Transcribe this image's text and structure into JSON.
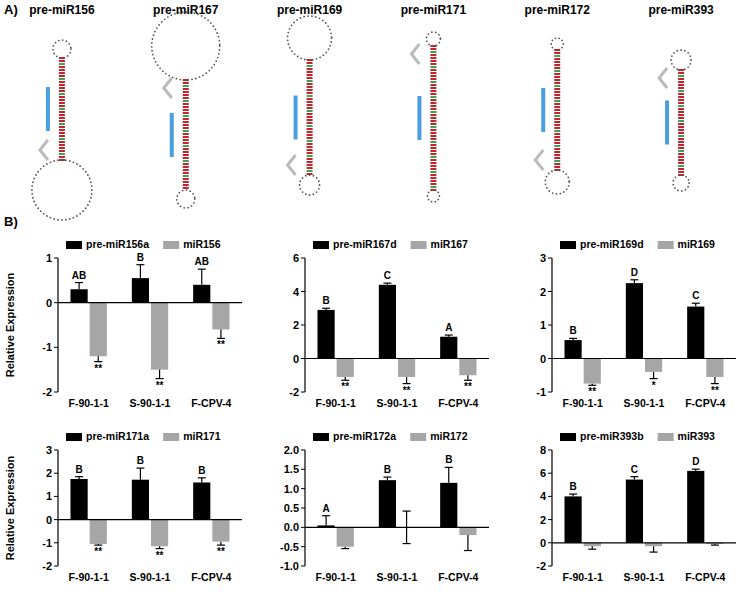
{
  "panel_labels": [
    "A)",
    "B)"
  ],
  "structures": [
    "pre-miR156",
    "pre-miR167",
    "pre-miR169",
    "pre-miR171",
    "pre-miR172",
    "pre-miR393"
  ],
  "chart_data": [
    {
      "type": "bar",
      "categories": [
        "F-90-1-1",
        "S-90-1-1",
        "F-CPV-4"
      ],
      "y_label": "Relative Expression",
      "legend": "top",
      "ylim": [
        -2,
        1
      ],
      "yticks": [
        -2,
        -1,
        0,
        1
      ],
      "series": [
        {
          "name": "pre-miR156a",
          "color": "#000000",
          "values": [
            0.3,
            0.55,
            0.4
          ],
          "errors": [
            0.15,
            0.3,
            0.35
          ],
          "labels": [
            "AB",
            "B",
            "AB"
          ]
        },
        {
          "name": "miR156",
          "color": "#a6a6a6",
          "values": [
            -1.2,
            -1.5,
            -0.6
          ],
          "errors": [
            0.12,
            0.2,
            0.2
          ],
          "labels": [
            "**",
            "**",
            "**"
          ]
        }
      ]
    },
    {
      "type": "bar",
      "categories": [
        "F-90-1-1",
        "S-90-1-1",
        "F-CPV-4"
      ],
      "legend": "top",
      "ylim": [
        -2,
        6
      ],
      "yticks": [
        -2,
        0,
        2,
        4,
        6
      ],
      "series": [
        {
          "name": "pre-miR167d",
          "color": "#000000",
          "values": [
            2.9,
            4.4,
            1.3
          ],
          "errors": [
            0.1,
            0.1,
            0.1
          ],
          "labels": [
            "B",
            "C",
            "A"
          ]
        },
        {
          "name": "miR167",
          "color": "#a6a6a6",
          "values": [
            -1.1,
            -1.1,
            -1.0
          ],
          "errors": [
            0.2,
            0.4,
            0.3
          ],
          "labels": [
            "**",
            "**",
            "**"
          ]
        }
      ]
    },
    {
      "type": "bar",
      "categories": [
        "F-90-1-1",
        "S-90-1-1",
        "F-CPV-4"
      ],
      "legend": "top",
      "ylim": [
        -1,
        3
      ],
      "yticks": [
        -1,
        0,
        1,
        2,
        3
      ],
      "series": [
        {
          "name": "pre-miR169d",
          "color": "#000000",
          "values": [
            0.55,
            2.25,
            1.55
          ],
          "errors": [
            0.05,
            0.1,
            0.1
          ],
          "labels": [
            "B",
            "D",
            "C"
          ]
        },
        {
          "name": "miR169",
          "color": "#a6a6a6",
          "values": [
            -0.75,
            -0.4,
            -0.55
          ],
          "errors": [
            0.05,
            0.2,
            0.2
          ],
          "labels": [
            "**",
            "*",
            "**"
          ]
        }
      ]
    },
    {
      "type": "bar",
      "categories": [
        "F-90-1-1",
        "S-90-1-1",
        "F-CPV-4"
      ],
      "y_label": "Relative Expression",
      "legend": "top",
      "ylim": [
        -2,
        3
      ],
      "yticks": [
        -2,
        -1,
        0,
        1,
        2,
        3
      ],
      "series": [
        {
          "name": "pre-miR171a",
          "color": "#000000",
          "values": [
            1.75,
            1.72,
            1.6
          ],
          "errors": [
            0.1,
            0.5,
            0.2
          ],
          "labels": [
            "B",
            "B",
            "B"
          ]
        },
        {
          "name": "miR171",
          "color": "#a6a6a6",
          "values": [
            -1.05,
            -1.15,
            -0.95
          ],
          "errors": [
            0.05,
            0.1,
            0.15
          ],
          "labels": [
            "**",
            "**",
            "**"
          ]
        }
      ]
    },
    {
      "type": "bar",
      "categories": [
        "F-90-1-1",
        "S-90-1-1",
        "F-CPV-4"
      ],
      "legend": "top",
      "ylim": [
        -1,
        2
      ],
      "yticks": [
        {
          "value": -1,
          "label": "-1.0"
        },
        {
          "value": -0.5,
          "label": "-0.5"
        },
        {
          "value": 0,
          "label": "0.0"
        },
        {
          "value": 0.5,
          "label": "0.5"
        },
        {
          "value": 1,
          "label": "1.0"
        },
        {
          "value": 1.5,
          "label": "1.5"
        },
        {
          "value": 2,
          "label": "2.0"
        }
      ],
      "series": [
        {
          "name": "pre-miR172a",
          "color": "#000000",
          "values": [
            0.05,
            1.22,
            1.15
          ],
          "errors": [
            0.25,
            0.08,
            0.4
          ],
          "labels": [
            "A",
            "B",
            "B"
          ]
        },
        {
          "name": "miR172",
          "color": "#a6a6a6",
          "values": [
            -0.5,
            0.0,
            -0.2
          ],
          "errors": [
            0.05,
            0.42,
            0.4
          ]
        }
      ]
    },
    {
      "type": "bar",
      "categories": [
        "F-90-1-1",
        "S-90-1-1",
        "F-CPV-4"
      ],
      "legend": "top",
      "ylim": [
        -2,
        8
      ],
      "yticks": [
        -2,
        0,
        2,
        4,
        6,
        8
      ],
      "series": [
        {
          "name": "pre-miR393b",
          "color": "#000000",
          "values": [
            4.0,
            5.45,
            6.2
          ],
          "errors": [
            0.2,
            0.25,
            0.15
          ],
          "labels": [
            "B",
            "C",
            "D"
          ]
        },
        {
          "name": "miR393",
          "color": "#a6a6a6",
          "values": [
            -0.3,
            -0.3,
            -0.1
          ],
          "errors": [
            0.25,
            0.5,
            0.1
          ]
        }
      ]
    }
  ]
}
